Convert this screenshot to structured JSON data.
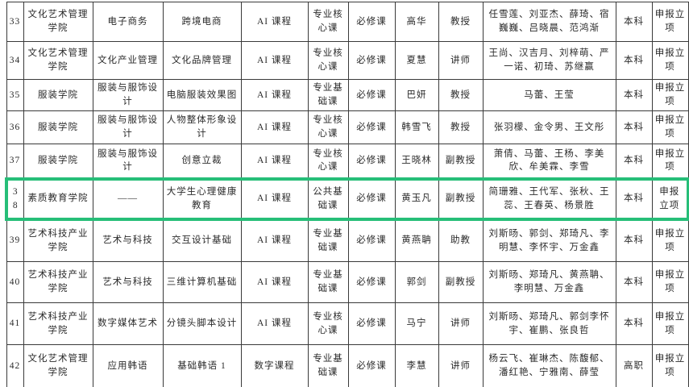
{
  "highlight_color": "#26be78",
  "table": {
    "rows": [
      {
        "no": "33",
        "college": "文化艺术管理学院",
        "major": "电子商务",
        "course": "跨境电商",
        "type": "AI 课程",
        "nature": "专业核心课",
        "required": "必修课",
        "leader": "高华",
        "title": "教授",
        "team": "任雪莲、刘亚杰、薛琦、宿巍巍、吕晓晨、范鸿渐",
        "level": "本科",
        "status": "申报立项",
        "highlighted": false
      },
      {
        "no": "34",
        "college": "文化艺术管理学院",
        "major": "文化产业管理",
        "course": "文化品牌管理",
        "type": "AI 课程",
        "nature": "专业核心课",
        "required": "必修课",
        "leader": "夏慧",
        "title": "讲师",
        "team": "王尚、汉吉月、刘梓萌、严一诺、初琦、苏继赢",
        "level": "本科",
        "status": "申报立项",
        "highlighted": false
      },
      {
        "no": "35",
        "college": "服装学院",
        "major": "服装与服饰设计",
        "course": "电脑服装效果图",
        "type": "AI 课程",
        "nature": "专业基础课",
        "required": "必修课",
        "leader": "巴妍",
        "title": "教授",
        "team": "马蕾、王莹",
        "level": "本科",
        "status": "申报立项",
        "highlighted": false
      },
      {
        "no": "36",
        "college": "服装学院",
        "major": "服装与服饰设计",
        "course": "人物整体形象设计",
        "type": "AI 课程",
        "nature": "专业核心课",
        "required": "必修课",
        "leader": "韩雪飞",
        "title": "教授",
        "team": "张羽檬、金令男、王文彤",
        "level": "本科",
        "status": "申报立项",
        "highlighted": false
      },
      {
        "no": "37",
        "college": "服装学院",
        "major": "服装与服饰设计",
        "course": "创意立裁",
        "type": "AI 课程",
        "nature": "专业核心课",
        "required": "必修课",
        "leader": "王晓林",
        "title": "副教授",
        "team": "萧倩、马蕾、王杨、李美欣、牟美霖、李雪",
        "level": "本科",
        "status": "申报立项",
        "highlighted": false
      },
      {
        "no": "38",
        "college": "素质教育学院",
        "major": "——",
        "course": "大学生心理健康教育",
        "type": "AI 课程",
        "nature": "公共基础课",
        "required": "必修课",
        "leader": "黄玉凡",
        "title": "副教授",
        "team": "简珊雅、王代军、张秋、王蕊、王春英、杨景胜",
        "level": "本科",
        "status": "申报立项",
        "highlighted": true
      },
      {
        "no": "39",
        "college": "艺术科技产业学院",
        "major": "艺术与科技",
        "course": "交互设计基础",
        "type": "AI 课程",
        "nature": "专业基础课",
        "required": "必修课",
        "leader": "黄燕聃",
        "title": "助教",
        "team": "刘斯旸、郭剑、郑琦凡、李明慧、李怀宇、万金鑫",
        "level": "本科",
        "status": "申报立项",
        "highlighted": false
      },
      {
        "no": "40",
        "college": "艺术科技产业学院",
        "major": "艺术与科技",
        "course": "三维计算机基础",
        "type": "AI 课程",
        "nature": "专业基础课",
        "required": "必修课",
        "leader": "郭剑",
        "title": "副教授",
        "team": "刘斯旸、郑琦凡、黄燕聃、李明慧、万金鑫",
        "level": "本科",
        "status": "申报立项",
        "highlighted": false
      },
      {
        "no": "41",
        "college": "艺术科技产业学院",
        "major": "数字媒体艺术",
        "course": "分镜头脚本设计",
        "type": "AI 课程",
        "nature": "专业核心课",
        "required": "必修课",
        "leader": "马宁",
        "title": "讲师",
        "team": "刘斯旸、郑琦凡、郭剑李怀宇、崔鹏、张良哲",
        "level": "本科",
        "status": "申报立项",
        "highlighted": false
      },
      {
        "no": "42",
        "college": "文化艺术管理学院",
        "major": "应用韩语",
        "course": "基础韩语 1",
        "type": "数字课程",
        "nature": "专业基础课",
        "required": "必修课",
        "leader": "李慧",
        "title": "讲师",
        "team": "杨云飞、崔琳杰、陈馥郁、潘红艳、宁雅南、薛莹",
        "level": "高职",
        "status": "申报立项",
        "highlighted": false
      }
    ]
  }
}
